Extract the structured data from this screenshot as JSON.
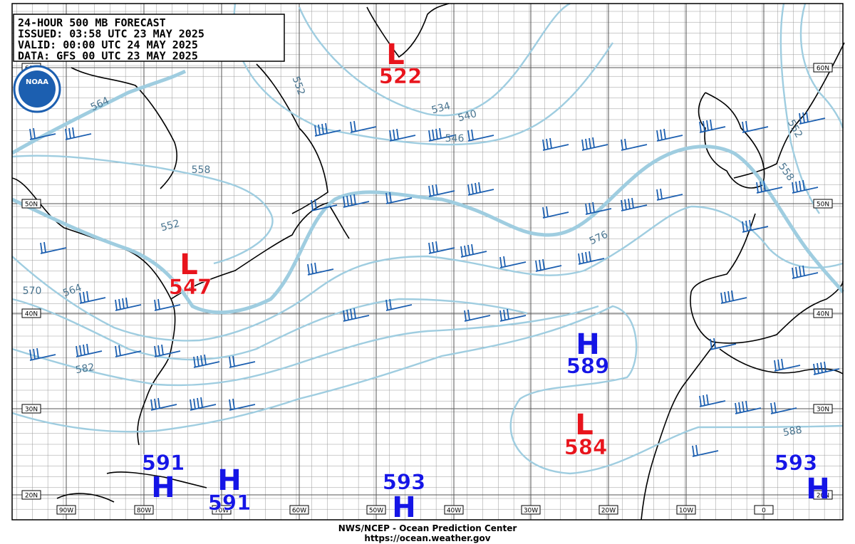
{
  "header": {
    "lines": [
      "24-HOUR 500 MB FORECAST",
      "ISSUED: 03:58 UTC 23 MAY 2025",
      "VALID:  00:00 UTC 24 MAY 2025",
      "DATA:  GFS 00 UTC 23 MAY 2025"
    ],
    "logo": "NOAA"
  },
  "map": {
    "lon_labels": [
      "90W",
      "80W",
      "70W",
      "60W",
      "50W",
      "40W",
      "30W",
      "20W",
      "10W",
      "0"
    ],
    "lat_labels": [
      "60N",
      "50N",
      "40N",
      "30N",
      "20N"
    ],
    "contour_labels": [
      "564",
      "552",
      "534",
      "540",
      "546",
      "558",
      "552",
      "564",
      "570",
      "576",
      "582",
      "588",
      "552",
      "558"
    ],
    "centers": [
      {
        "symbol": "L",
        "value": "522"
      },
      {
        "symbol": "L",
        "value": "547"
      },
      {
        "symbol": "H",
        "value": "589"
      },
      {
        "symbol": "L",
        "value": "584"
      },
      {
        "symbol": "H",
        "value": "591"
      },
      {
        "symbol": "H",
        "value": "591"
      },
      {
        "symbol": "H",
        "value": "593"
      },
      {
        "symbol": "H",
        "value": "593"
      }
    ]
  },
  "footer": {
    "lines": [
      "NWS/NCEP - Ocean Prediction Center",
      "https://ocean.weather.gov"
    ]
  }
}
